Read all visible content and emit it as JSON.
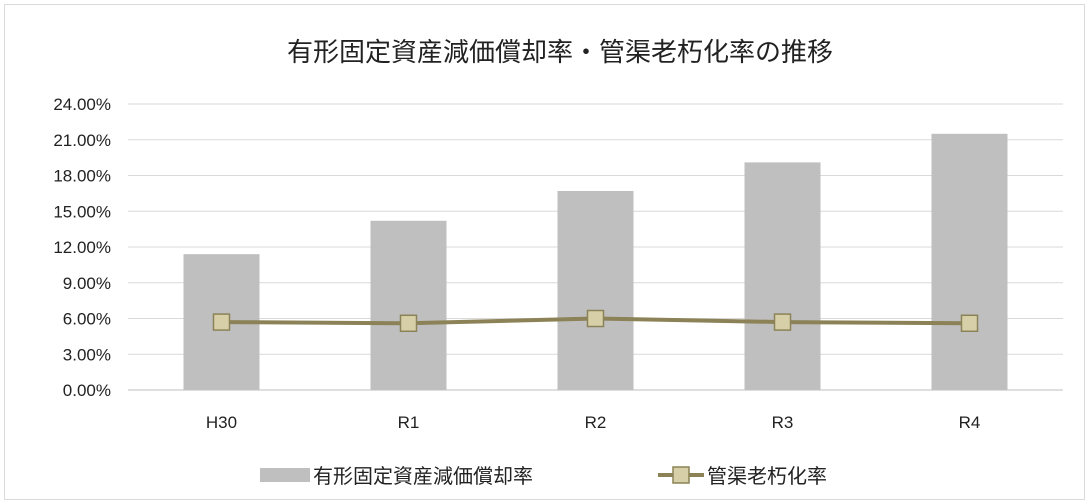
{
  "chart_data": {
    "type": "bar",
    "title": "有形固定資産減価償却率・管渠老朽化率の推移",
    "categories": [
      "H30",
      "R1",
      "R2",
      "R3",
      "R4"
    ],
    "series": [
      {
        "name": "有形固定資産減価償却率",
        "kind": "bar",
        "color": "#bfbfbf",
        "values": [
          11.4,
          14.2,
          16.7,
          19.1,
          21.5
        ]
      },
      {
        "name": "管渠老朽化率",
        "kind": "line",
        "color": "#8c8257",
        "marker_fill": "#d6cfa8",
        "values": [
          5.7,
          5.6,
          6.0,
          5.7,
          5.6
        ]
      }
    ],
    "yticks": [
      "0.00%",
      "3.00%",
      "6.00%",
      "9.00%",
      "12.00%",
      "15.00%",
      "18.00%",
      "21.00%",
      "24.00%"
    ],
    "ylim": [
      0,
      24
    ],
    "grid": true,
    "legend_position": "bottom"
  }
}
